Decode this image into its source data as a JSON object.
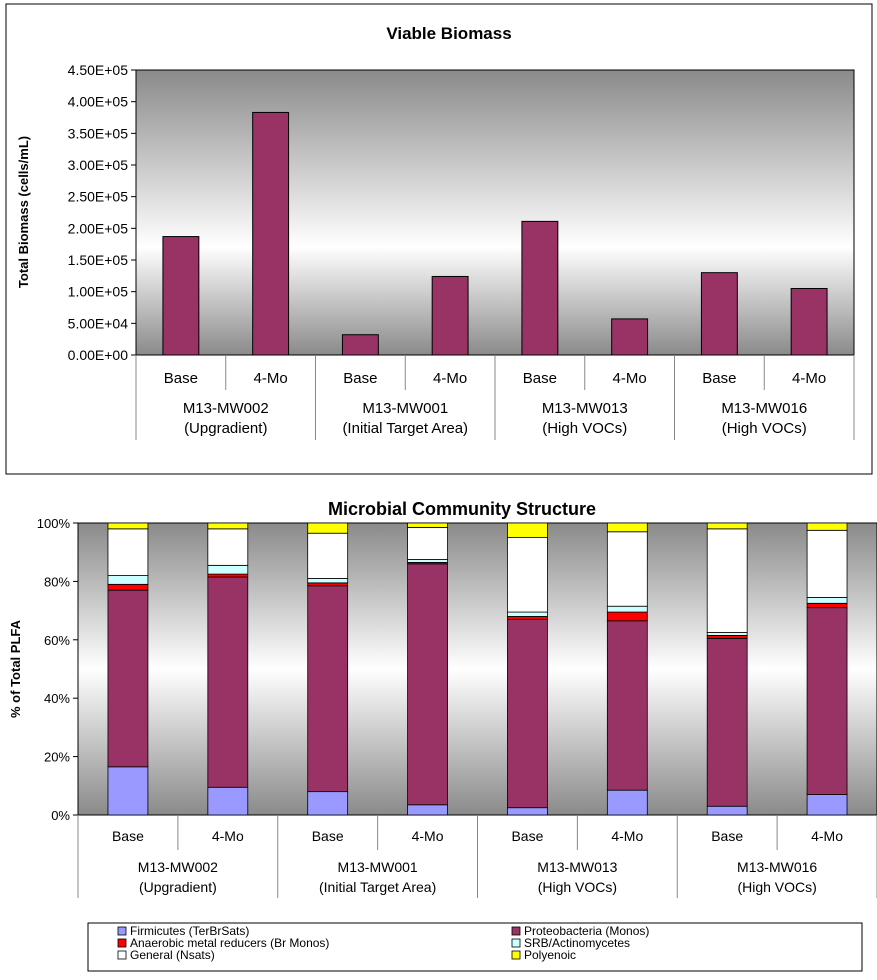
{
  "chart_data": [
    {
      "type": "bar",
      "title": "Viable Biomass",
      "ylabel": "Total Biomass (cells/mL)",
      "ylim": [
        0,
        450000
      ],
      "yticks": [
        "0.00E+00",
        "5.00E+04",
        "1.00E+05",
        "1.50E+05",
        "2.00E+05",
        "2.50E+05",
        "3.00E+05",
        "3.50E+05",
        "4.00E+05",
        "4.50E+05"
      ],
      "categories": [
        "Base",
        "4-Mo",
        "Base",
        "4-Mo",
        "Base",
        "4-Mo",
        "Base",
        "4-Mo"
      ],
      "groups": [
        {
          "line1": "M13-MW002",
          "line2": "(Upgradient)"
        },
        {
          "line1": "M13-MW001",
          "line2": "(Initial Target Area)"
        },
        {
          "line1": "M13-MW013",
          "line2": "(High VOCs)"
        },
        {
          "line1": "M13-MW016",
          "line2": "(High VOCs)"
        }
      ],
      "values": [
        187000,
        383000,
        32000,
        124000,
        211000,
        57000,
        130000,
        105000
      ],
      "bar_color": "#993366",
      "grid": false
    },
    {
      "type": "bar",
      "stacked": true,
      "title": "Microbial Community Structure",
      "ylabel": "% of Total PLFA",
      "ylim": [
        0,
        100
      ],
      "yticks": [
        "0%",
        "20%",
        "40%",
        "60%",
        "80%",
        "100%"
      ],
      "categories": [
        "Base",
        "4-Mo",
        "Base",
        "4-Mo",
        "Base",
        "4-Mo",
        "Base",
        "4-Mo"
      ],
      "groups": [
        {
          "line1": "M13-MW002",
          "line2": "(Upgradient)"
        },
        {
          "line1": "M13-MW001",
          "line2": "(Initial Target Area)"
        },
        {
          "line1": "M13-MW013",
          "line2": "(High VOCs)"
        },
        {
          "line1": "M13-MW016",
          "line2": "(High VOCs)"
        }
      ],
      "series": [
        {
          "name": "Firmicutes (TerBrSats)",
          "color": "#9999FF",
          "values": [
            16.5,
            9.5,
            8.0,
            3.5,
            2.5,
            8.5,
            3.0,
            7.0
          ]
        },
        {
          "name": "Proteobacteria (Monos)",
          "color": "#993366",
          "values": [
            60.5,
            72.0,
            70.5,
            82.5,
            64.5,
            58.0,
            57.5,
            64.0
          ]
        },
        {
          "name": "Anaerobic metal reducers (Br Monos)",
          "color": "#FF0000",
          "values": [
            2.0,
            1.0,
            1.0,
            0.5,
            1.0,
            3.0,
            1.0,
            1.5
          ]
        },
        {
          "name": "SRB/Actinomycetes",
          "color": "#CCFFFF",
          "values": [
            3.0,
            3.0,
            1.5,
            1.0,
            1.5,
            2.0,
            1.0,
            2.0
          ]
        },
        {
          "name": "General (Nsats)",
          "color": "#FFFFFF",
          "values": [
            16.0,
            12.5,
            15.5,
            11.0,
            25.5,
            25.5,
            35.5,
            23.0
          ]
        },
        {
          "name": "Polyenoic",
          "color": "#FFFF00",
          "values": [
            2.0,
            2.0,
            3.5,
            1.5,
            5.0,
            3.0,
            2.0,
            2.5
          ]
        }
      ],
      "legend_position": "bottom",
      "grid": false
    }
  ]
}
